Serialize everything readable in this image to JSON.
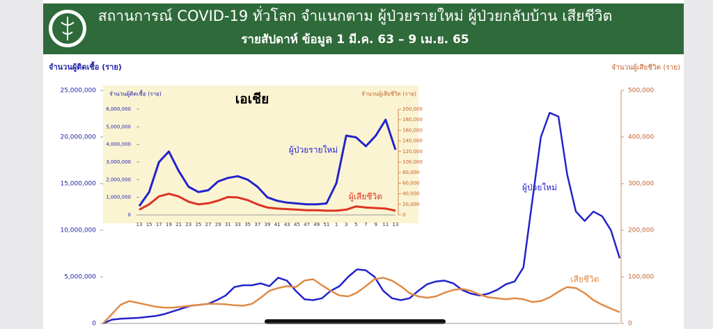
{
  "chart_data": [
    {
      "type": "line",
      "title": "สถานการณ์ COVID-19 ทั่วโลก จำแนกตาม ผู้ป่วยรายใหม่ ผู้ป่วยกลับบ้าน เสียชีวิต",
      "subtitle": "รายสัปดาห์ ข้อมูล 1 มี.ค. 63 –  9 เม.ย. 65",
      "ylabel": "จำนวนผู้ติดเชื้อ (ราย)",
      "y2label": "จำนวนผู้เสียชีวิต (ราย)",
      "categories": [
        null,
        null,
        null,
        null,
        null,
        null,
        null,
        null,
        null,
        null,
        null,
        null,
        null,
        null,
        null,
        null,
        null,
        null,
        null,
        null,
        null,
        null,
        null,
        null,
        null,
        null,
        null,
        null,
        null,
        null,
        null,
        null,
        null,
        null,
        null,
        null,
        null,
        null,
        null,
        null,
        null,
        null,
        null,
        null,
        null,
        null,
        null,
        null,
        null,
        null,
        null,
        null,
        null,
        null,
        null,
        null,
        null,
        null,
        null,
        null
      ],
      "series": [
        {
          "name": "ผู้ป่วยใหม่",
          "color": "#2222cc",
          "values": [
            0,
            400000,
            500000,
            550000,
            600000,
            700000,
            800000,
            1000000,
            1300000,
            1600000,
            1900000,
            2000000,
            2100000,
            2500000,
            3000000,
            3900000,
            4100000,
            4100000,
            4300000,
            4000000,
            4900000,
            4600000,
            3500000,
            2600000,
            2500000,
            2700000,
            3500000,
            4000000,
            5000000,
            5800000,
            5700000,
            5000000,
            3500000,
            2700000,
            2500000,
            2700000,
            3500000,
            4200000,
            4500000,
            4600000,
            4300000,
            3600000,
            3200000,
            3000000,
            3200000,
            3600000,
            4200000,
            4500000,
            6000000,
            13000000,
            20000000,
            22600000,
            22200000,
            16000000,
            12000000,
            11000000,
            12000000,
            11500000,
            10000000,
            7000000
          ]
        },
        {
          "name": "เสียชีวิต",
          "color": "#e08a45",
          "axis": "y2",
          "values": [
            0,
            20000,
            40000,
            48000,
            44000,
            40000,
            36000,
            34000,
            34000,
            36000,
            38000,
            40000,
            42000,
            42000,
            41000,
            39000,
            38000,
            42000,
            55000,
            70000,
            76000,
            80000,
            78000,
            92000,
            95000,
            82000,
            70000,
            60000,
            58000,
            66000,
            80000,
            95000,
            98000,
            92000,
            80000,
            65000,
            58000,
            55000,
            58000,
            66000,
            72000,
            74000,
            70000,
            62000,
            56000,
            54000,
            52000,
            54000,
            52000,
            46000,
            48000,
            56000,
            68000,
            78000,
            76000,
            65000,
            50000,
            40000,
            32000,
            24000
          ]
        }
      ],
      "ylim": [
        0,
        25000000
      ],
      "yticks": [
        0,
        {
          "value": 5000000,
          "label": "5,000,000"
        },
        {
          "value": 10000000,
          "label": "10,000,000"
        },
        {
          "value": 15000000,
          "label": "15,000,000"
        },
        {
          "value": 20000000,
          "label": "20,000,000"
        },
        {
          "value": 25000000,
          "label": "25,000,000"
        }
      ],
      "y2lim": [
        0,
        500000
      ],
      "y2ticks": [
        0,
        {
          "value": 100000,
          "label": "100,000"
        },
        {
          "value": 200000,
          "label": "200,000"
        },
        {
          "value": 300000,
          "label": "300,000"
        },
        {
          "value": 400000,
          "label": "400,000"
        },
        {
          "value": 500000,
          "label": "500,000"
        }
      ],
      "grid": false
    },
    {
      "type": "line",
      "title": "เอเชีย",
      "ylabel": "จำนวนผู้ติดเชื้อ (ราย)",
      "y2label": "จำนวนผู้เสียชีวิต (ราย)",
      "categories": [
        "13",
        "15",
        "17",
        "19",
        "21",
        "23",
        "25",
        "27",
        "29",
        "31",
        "33",
        "35",
        "37",
        "39",
        "41",
        "43",
        "45",
        "47",
        "49",
        "51",
        "1",
        "3",
        "5",
        "7",
        "9",
        "11",
        "13"
      ],
      "series": [
        {
          "name": "ผู้ป่วยรายใหม่",
          "color": "#2222cc",
          "values": [
            500000,
            1300000,
            3000000,
            3600000,
            2500000,
            1600000,
            1300000,
            1400000,
            1900000,
            2100000,
            2200000,
            2000000,
            1600000,
            1000000,
            800000,
            700000,
            650000,
            600000,
            600000,
            650000,
            1800000,
            4500000,
            4400000,
            3900000,
            4500000,
            5400000,
            3700000
          ]
        },
        {
          "name": "ผู้เสียชีวิต",
          "color": "#dd3322",
          "axis": "y2",
          "values": [
            10000,
            20000,
            35000,
            40000,
            35000,
            25000,
            20000,
            22000,
            27000,
            34000,
            33000,
            28000,
            20000,
            14000,
            12000,
            11000,
            10000,
            9000,
            9000,
            8000,
            8000,
            10000,
            16000,
            14000,
            13000,
            12000,
            8000
          ]
        }
      ],
      "ylim": [
        0,
        6000000
      ],
      "yticks": [
        0,
        {
          "value": 1000000,
          "label": "1,000,000"
        },
        {
          "value": 2000000,
          "label": "2,000,000"
        },
        {
          "value": 3000000,
          "label": "3,000,000"
        },
        {
          "value": 4000000,
          "label": "4,000,000"
        },
        {
          "value": 5000000,
          "label": "5,000,000"
        },
        {
          "value": 6000000,
          "label": "6,000,000"
        }
      ],
      "y2lim": [
        0,
        200000
      ],
      "y2ticks": [
        0,
        {
          "value": 20000,
          "label": "20,000"
        },
        {
          "value": 40000,
          "label": "40,000"
        },
        {
          "value": 60000,
          "label": "60,000"
        },
        {
          "value": 80000,
          "label": "80,000"
        },
        {
          "value": 100000,
          "label": "100,000"
        },
        {
          "value": 120000,
          "label": "120,000"
        },
        {
          "value": 140000,
          "label": "140,000"
        },
        {
          "value": 160000,
          "label": "160,000"
        },
        {
          "value": 180000,
          "label": "180,000"
        },
        {
          "value": 200000,
          "label": "200,000"
        }
      ],
      "grid": false
    }
  ]
}
